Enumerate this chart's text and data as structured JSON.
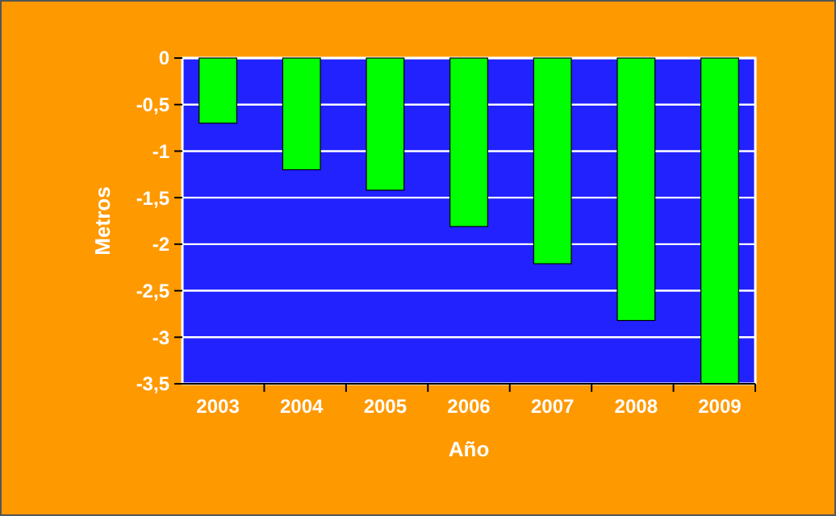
{
  "chart_data": {
    "type": "bar",
    "xlabel": "Año",
    "ylabel": "Metros",
    "categories": [
      "2003",
      "2004",
      "2005",
      "2006",
      "2007",
      "2008",
      "2009"
    ],
    "values": [
      -0.7,
      -1.2,
      -1.42,
      -1.81,
      -2.21,
      -2.82,
      -3.5
    ],
    "color": "#00ff00",
    "ylim": [
      -3.5,
      0
    ],
    "yticks": [
      0,
      {
        "value": -0.5,
        "label": "-0,5"
      },
      -1,
      {
        "value": -1.5,
        "label": "-1,5"
      },
      -2,
      {
        "value": -2.5,
        "label": "-2,5"
      },
      -3,
      {
        "value": -3.5,
        "label": "-3,5"
      }
    ],
    "grid": true
  }
}
